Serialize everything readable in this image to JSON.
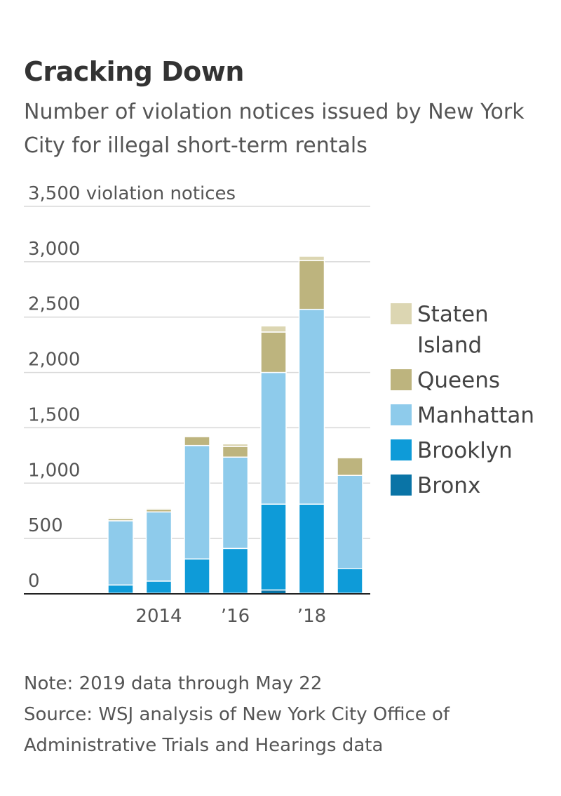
{
  "chart_data": {
    "type": "stacked-bar",
    "title": "Cracking Down",
    "subtitle": "Number of violation notices issued by New York City for illegal short-term rentals",
    "notes": [
      "Note: 2019 data through May 22",
      "Source: WSJ analysis of New York City Office of Administrative Trials and Hearings data"
    ],
    "categories": [
      null,
      "2014",
      null,
      "’16",
      null,
      "’18",
      null
    ],
    "series": [
      {
        "name": "Bronx",
        "color": "#0a74a6",
        "values": [
          5,
          5,
          5,
          5,
          35,
          5,
          5
        ]
      },
      {
        "name": "Brooklyn",
        "color": "#0e9bd8",
        "values": [
          75,
          110,
          310,
          405,
          775,
          805,
          225
        ]
      },
      {
        "name": "Manhattan",
        "color": "#8ecbeb",
        "values": [
          580,
          625,
          1025,
          825,
          1190,
          1760,
          840
        ]
      },
      {
        "name": "Queens",
        "color": "#bdb47e",
        "values": [
          20,
          25,
          80,
          95,
          365,
          440,
          160
        ]
      },
      {
        "name": "Staten Island",
        "color": "#dcd6b2",
        "values": [
          10,
          10,
          10,
          25,
          55,
          40,
          5
        ]
      }
    ],
    "ylim": [
      0,
      3500
    ],
    "yticks": [
      0,
      500,
      {
        "value": 1000,
        "label": "1,000"
      },
      {
        "value": 1500,
        "label": "1,500"
      },
      {
        "value": 2000,
        "label": "2,000"
      },
      {
        "value": 2500,
        "label": "2,500"
      },
      {
        "value": 3000,
        "label": "3,000"
      },
      {
        "value": 3500,
        "label": "3,500 violation notices"
      }
    ],
    "grid": true
  }
}
